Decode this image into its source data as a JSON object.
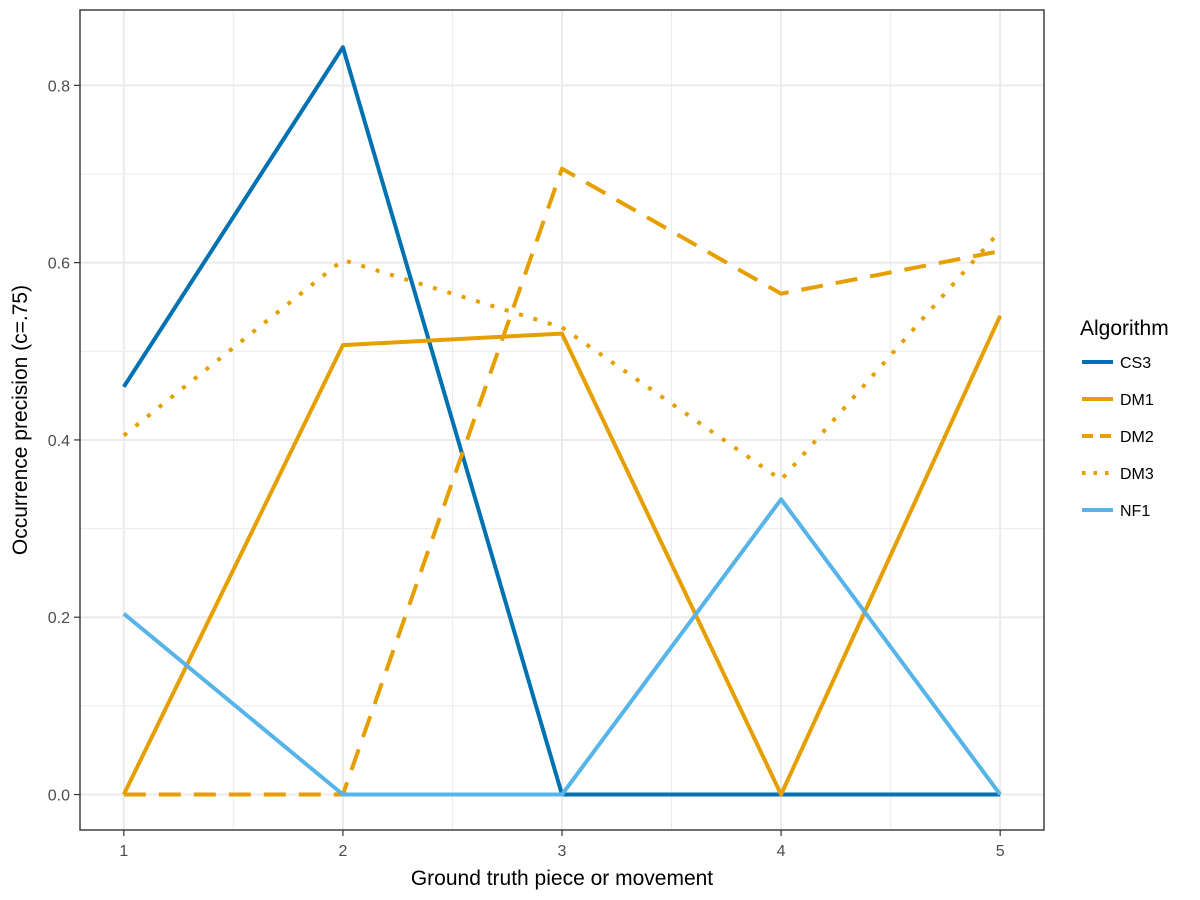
{
  "chart_data": {
    "type": "line",
    "xlabel": "Ground truth piece or movement",
    "ylabel": "Occurrence precision (c=.75)",
    "x": [
      1,
      2,
      3,
      4,
      5
    ],
    "xlim": [
      0.8,
      5.2
    ],
    "ylim": [
      -0.04,
      0.885
    ],
    "xticks": [
      1,
      2,
      3,
      4,
      5
    ],
    "xtick_labels": [
      "1",
      "2",
      "3",
      "4",
      "5"
    ],
    "yticks": [
      0.0,
      0.2,
      0.4,
      0.6,
      0.8
    ],
    "ytick_labels": [
      "0.0",
      "0.2",
      "0.4",
      "0.6",
      "0.8"
    ],
    "grid": true,
    "legend": {
      "title": "Algorithm",
      "position": "right"
    },
    "series": [
      {
        "name": "CS3",
        "values": [
          0.46,
          0.843,
          0.0,
          0.0,
          0.0
        ],
        "color": "#0072B2",
        "linetype": "solid"
      },
      {
        "name": "DM1",
        "values": [
          0.0,
          0.507,
          0.52,
          0.0,
          0.54
        ],
        "color": "#E69F00",
        "linetype": "solid"
      },
      {
        "name": "DM2",
        "values": [
          0.0,
          0.0,
          0.706,
          0.565,
          0.613
        ],
        "color": "#E69F00",
        "linetype": "dashed"
      },
      {
        "name": "DM3",
        "values": [
          0.405,
          0.603,
          0.527,
          0.355,
          0.636
        ],
        "color": "#E69F00",
        "linetype": "dotted"
      },
      {
        "name": "NF1",
        "values": [
          0.204,
          0.0,
          0.0,
          0.333,
          0.0
        ],
        "color": "#56B4E9",
        "linetype": "solid"
      }
    ]
  }
}
